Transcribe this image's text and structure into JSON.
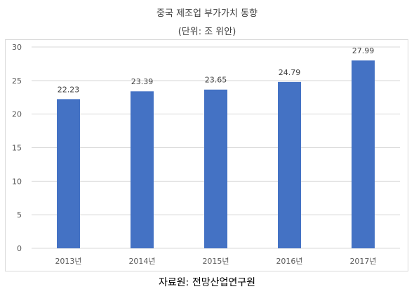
{
  "chart_data": {
    "type": "bar",
    "title": "중국 제조업 부가가치 동향",
    "subtitle": "(단위: 조 위안)",
    "categories": [
      "2013년",
      "2014년",
      "2015년",
      "2016년",
      "2017년"
    ],
    "values": [
      22.23,
      23.39,
      23.65,
      24.79,
      27.99
    ],
    "value_labels": [
      "22.23",
      "23.39",
      "23.65",
      "24.79",
      "27.99"
    ],
    "ylim": [
      0,
      30
    ],
    "yticks": [
      0,
      5,
      10,
      15,
      20,
      25,
      30
    ],
    "grid": true,
    "bar_color": "#4472c4",
    "grid_color": "#d9d9d9"
  },
  "source": "자료원: 전망산업연구원"
}
